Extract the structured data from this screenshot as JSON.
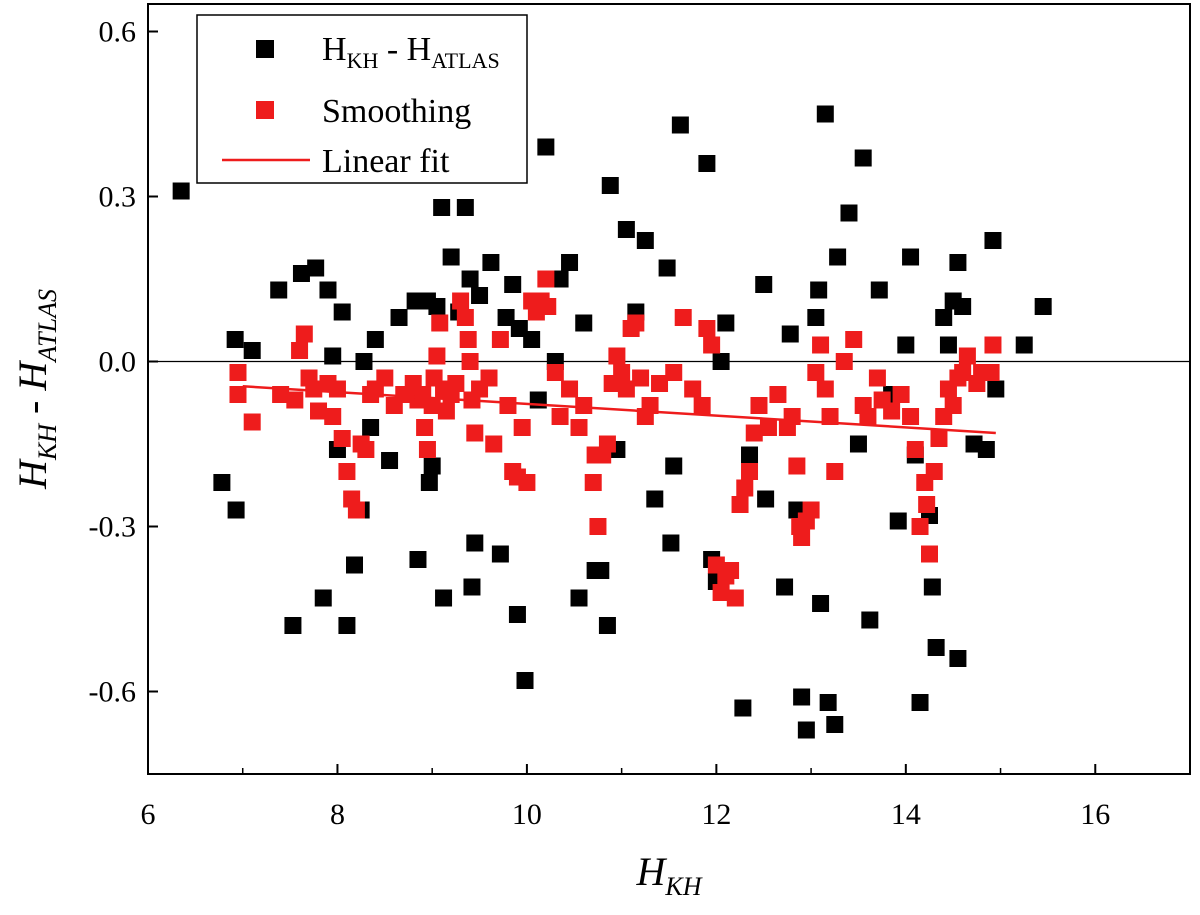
{
  "chart_data": {
    "type": "scatter",
    "title": "",
    "xlabel": {
      "main": "H",
      "sub": "KH"
    },
    "ylabel": {
      "main_a": "H",
      "sub_a": "KH",
      "sep": " - ",
      "main_b": "H",
      "sub_b": "ATLAS"
    },
    "xlim": [
      6,
      17
    ],
    "ylim": [
      -0.75,
      0.65
    ],
    "xticks": [
      6,
      8,
      10,
      12,
      14,
      16
    ],
    "xtick_labels": [
      "6",
      "8",
      "10",
      "12",
      "14",
      "16"
    ],
    "yticks": [
      -0.6,
      -0.3,
      0.0,
      0.3,
      0.6
    ],
    "ytick_labels": [
      "-0.6",
      "-0.3",
      "0.0",
      "0.3",
      "0.6"
    ],
    "reference_line_y": 0.0,
    "legend": {
      "position": "top-left",
      "entries": [
        {
          "key": "black",
          "main": "H",
          "sub": "KH",
          "sep": " - ",
          "main2": "H",
          "sub2": "ATLAS",
          "marker": "square",
          "color": "#000000"
        },
        {
          "key": "red",
          "label": "Smoothing",
          "marker": "square",
          "color": "#ee1c1c"
        },
        {
          "key": "fit",
          "label": "Linear fit",
          "marker": "line",
          "color": "#ee1c1c"
        }
      ]
    },
    "series": [
      {
        "name": "H_KH - H_ATLAS",
        "color": "#000000",
        "points": [
          [
            6.35,
            0.31
          ],
          [
            6.78,
            -0.22
          ],
          [
            6.92,
            0.04
          ],
          [
            6.93,
            -0.27
          ],
          [
            7.1,
            0.02
          ],
          [
            7.38,
            0.13
          ],
          [
            7.53,
            -0.48
          ],
          [
            7.62,
            0.16
          ],
          [
            7.77,
            0.17
          ],
          [
            7.85,
            -0.43
          ],
          [
            7.9,
            0.13
          ],
          [
            7.95,
            0.01
          ],
          [
            8.0,
            -0.16
          ],
          [
            8.05,
            0.09
          ],
          [
            8.1,
            -0.48
          ],
          [
            8.18,
            -0.37
          ],
          [
            8.25,
            -0.27
          ],
          [
            8.28,
            0.0
          ],
          [
            8.35,
            -0.12
          ],
          [
            8.4,
            0.04
          ],
          [
            8.55,
            -0.18
          ],
          [
            8.65,
            0.08
          ],
          [
            8.82,
            0.11
          ],
          [
            8.85,
            -0.36
          ],
          [
            8.95,
            0.11
          ],
          [
            8.97,
            -0.22
          ],
          [
            9.0,
            -0.19
          ],
          [
            9.05,
            0.1
          ],
          [
            9.1,
            0.28
          ],
          [
            9.12,
            -0.43
          ],
          [
            9.2,
            0.19
          ],
          [
            9.28,
            0.09
          ],
          [
            9.35,
            0.28
          ],
          [
            9.4,
            0.15
          ],
          [
            9.42,
            -0.41
          ],
          [
            9.45,
            -0.33
          ],
          [
            9.5,
            0.12
          ],
          [
            9.62,
            0.18
          ],
          [
            9.72,
            -0.35
          ],
          [
            9.78,
            0.08
          ],
          [
            9.85,
            0.14
          ],
          [
            9.9,
            -0.46
          ],
          [
            9.92,
            0.06
          ],
          [
            9.98,
            -0.58
          ],
          [
            10.05,
            0.04
          ],
          [
            10.12,
            -0.07
          ],
          [
            10.2,
            0.39
          ],
          [
            10.3,
            0.0
          ],
          [
            10.35,
            0.15
          ],
          [
            10.45,
            0.18
          ],
          [
            10.55,
            -0.43
          ],
          [
            10.6,
            0.07
          ],
          [
            10.72,
            -0.38
          ],
          [
            10.78,
            -0.38
          ],
          [
            10.85,
            -0.48
          ],
          [
            10.88,
            0.32
          ],
          [
            10.95,
            -0.16
          ],
          [
            11.05,
            0.24
          ],
          [
            11.15,
            0.09
          ],
          [
            11.25,
            0.22
          ],
          [
            11.35,
            -0.25
          ],
          [
            11.48,
            0.17
          ],
          [
            11.52,
            -0.33
          ],
          [
            11.55,
            -0.19
          ],
          [
            11.62,
            0.43
          ],
          [
            11.9,
            0.36
          ],
          [
            11.95,
            -0.36
          ],
          [
            12.0,
            -0.4
          ],
          [
            12.05,
            0.0
          ],
          [
            12.1,
            0.07
          ],
          [
            12.28,
            -0.63
          ],
          [
            12.35,
            -0.17
          ],
          [
            12.5,
            0.14
          ],
          [
            12.52,
            -0.25
          ],
          [
            12.72,
            -0.41
          ],
          [
            12.78,
            0.05
          ],
          [
            12.85,
            -0.27
          ],
          [
            12.9,
            -0.61
          ],
          [
            12.95,
            -0.67
          ],
          [
            13.05,
            0.08
          ],
          [
            13.08,
            0.13
          ],
          [
            13.1,
            -0.44
          ],
          [
            13.15,
            0.45
          ],
          [
            13.18,
            -0.62
          ],
          [
            13.25,
            -0.66
          ],
          [
            13.28,
            0.19
          ],
          [
            13.4,
            0.27
          ],
          [
            13.5,
            -0.15
          ],
          [
            13.55,
            0.37
          ],
          [
            13.62,
            -0.47
          ],
          [
            13.72,
            0.13
          ],
          [
            13.85,
            -0.06
          ],
          [
            13.92,
            -0.29
          ],
          [
            14.0,
            0.03
          ],
          [
            14.05,
            0.19
          ],
          [
            14.1,
            -0.17
          ],
          [
            14.15,
            -0.62
          ],
          [
            14.25,
            -0.28
          ],
          [
            14.28,
            -0.41
          ],
          [
            14.32,
            -0.52
          ],
          [
            14.4,
            0.08
          ],
          [
            14.45,
            0.03
          ],
          [
            14.5,
            0.11
          ],
          [
            14.55,
            0.18
          ],
          [
            14.55,
            -0.54
          ],
          [
            14.6,
            0.1
          ],
          [
            14.72,
            -0.15
          ],
          [
            14.85,
            -0.16
          ],
          [
            14.92,
            0.22
          ],
          [
            14.95,
            -0.05
          ],
          [
            15.25,
            0.03
          ],
          [
            15.45,
            0.1
          ]
        ]
      },
      {
        "name": "Smoothing",
        "color": "#ee1c1c",
        "points": [
          [
            6.95,
            -0.02
          ],
          [
            6.95,
            -0.06
          ],
          [
            7.1,
            -0.11
          ],
          [
            7.4,
            -0.06
          ],
          [
            7.55,
            -0.07
          ],
          [
            7.6,
            0.02
          ],
          [
            7.65,
            0.05
          ],
          [
            7.7,
            -0.03
          ],
          [
            7.75,
            -0.05
          ],
          [
            7.8,
            -0.09
          ],
          [
            7.9,
            -0.04
          ],
          [
            7.95,
            -0.1
          ],
          [
            8.0,
            -0.05
          ],
          [
            8.05,
            -0.14
          ],
          [
            8.1,
            -0.2
          ],
          [
            8.15,
            -0.25
          ],
          [
            8.2,
            -0.27
          ],
          [
            8.25,
            -0.15
          ],
          [
            8.3,
            -0.16
          ],
          [
            8.35,
            -0.06
          ],
          [
            8.4,
            -0.05
          ],
          [
            8.5,
            -0.03
          ],
          [
            8.6,
            -0.08
          ],
          [
            8.7,
            -0.06
          ],
          [
            8.8,
            -0.04
          ],
          [
            8.85,
            -0.07
          ],
          [
            8.9,
            -0.06
          ],
          [
            8.92,
            -0.12
          ],
          [
            8.95,
            -0.16
          ],
          [
            9.0,
            -0.08
          ],
          [
            9.02,
            -0.03
          ],
          [
            9.05,
            0.01
          ],
          [
            9.08,
            0.07
          ],
          [
            9.12,
            -0.05
          ],
          [
            9.15,
            -0.09
          ],
          [
            9.2,
            -0.06
          ],
          [
            9.25,
            -0.04
          ],
          [
            9.3,
            0.11
          ],
          [
            9.35,
            0.08
          ],
          [
            9.38,
            0.04
          ],
          [
            9.4,
            0.0
          ],
          [
            9.42,
            -0.07
          ],
          [
            9.45,
            -0.13
          ],
          [
            9.5,
            -0.05
          ],
          [
            9.6,
            -0.03
          ],
          [
            9.65,
            -0.15
          ],
          [
            9.72,
            0.04
          ],
          [
            9.8,
            -0.08
          ],
          [
            9.85,
            -0.2
          ],
          [
            9.9,
            -0.21
          ],
          [
            9.95,
            -0.12
          ],
          [
            10.0,
            -0.22
          ],
          [
            10.05,
            0.11
          ],
          [
            10.1,
            0.09
          ],
          [
            10.15,
            0.11
          ],
          [
            10.2,
            0.15
          ],
          [
            10.22,
            0.1
          ],
          [
            10.3,
            -0.02
          ],
          [
            10.35,
            -0.1
          ],
          [
            10.45,
            -0.05
          ],
          [
            10.55,
            -0.12
          ],
          [
            10.6,
            -0.08
          ],
          [
            10.7,
            -0.22
          ],
          [
            10.72,
            -0.17
          ],
          [
            10.75,
            -0.3
          ],
          [
            10.8,
            -0.17
          ],
          [
            10.85,
            -0.15
          ],
          [
            10.9,
            -0.04
          ],
          [
            10.95,
            0.01
          ],
          [
            11.0,
            -0.02
          ],
          [
            11.05,
            -0.05
          ],
          [
            11.1,
            0.06
          ],
          [
            11.15,
            0.07
          ],
          [
            11.2,
            -0.03
          ],
          [
            11.25,
            -0.1
          ],
          [
            11.3,
            -0.08
          ],
          [
            11.4,
            -0.04
          ],
          [
            11.55,
            -0.02
          ],
          [
            11.65,
            0.08
          ],
          [
            11.75,
            -0.05
          ],
          [
            11.85,
            -0.08
          ],
          [
            11.9,
            0.06
          ],
          [
            11.95,
            0.03
          ],
          [
            12.0,
            -0.37
          ],
          [
            12.05,
            -0.42
          ],
          [
            12.1,
            -0.39
          ],
          [
            12.15,
            -0.38
          ],
          [
            12.2,
            -0.43
          ],
          [
            12.25,
            -0.26
          ],
          [
            12.3,
            -0.23
          ],
          [
            12.35,
            -0.2
          ],
          [
            12.4,
            -0.13
          ],
          [
            12.45,
            -0.08
          ],
          [
            12.55,
            -0.12
          ],
          [
            12.65,
            -0.06
          ],
          [
            12.75,
            -0.12
          ],
          [
            12.8,
            -0.1
          ],
          [
            12.85,
            -0.19
          ],
          [
            12.88,
            -0.3
          ],
          [
            12.9,
            -0.32
          ],
          [
            12.95,
            -0.29
          ],
          [
            13.0,
            -0.27
          ],
          [
            13.05,
            -0.02
          ],
          [
            13.1,
            0.03
          ],
          [
            13.15,
            -0.05
          ],
          [
            13.2,
            -0.1
          ],
          [
            13.25,
            -0.2
          ],
          [
            13.35,
            0.0
          ],
          [
            13.45,
            0.04
          ],
          [
            13.55,
            -0.08
          ],
          [
            13.6,
            -0.1
          ],
          [
            13.7,
            -0.03
          ],
          [
            13.75,
            -0.07
          ],
          [
            13.85,
            -0.09
          ],
          [
            13.95,
            -0.06
          ],
          [
            14.05,
            -0.1
          ],
          [
            14.1,
            -0.16
          ],
          [
            14.15,
            -0.3
          ],
          [
            14.2,
            -0.22
          ],
          [
            14.22,
            -0.26
          ],
          [
            14.25,
            -0.35
          ],
          [
            14.3,
            -0.2
          ],
          [
            14.35,
            -0.14
          ],
          [
            14.4,
            -0.1
          ],
          [
            14.45,
            -0.05
          ],
          [
            14.5,
            -0.08
          ],
          [
            14.55,
            -0.03
          ],
          [
            14.6,
            -0.02
          ],
          [
            14.65,
            0.01
          ],
          [
            14.75,
            -0.04
          ],
          [
            14.8,
            -0.02
          ],
          [
            14.9,
            -0.02
          ],
          [
            14.92,
            0.03
          ]
        ]
      },
      {
        "name": "Linear fit",
        "color": "#ee1c1c",
        "kind": "line",
        "x": [
          7.0,
          14.95
        ],
        "y": [
          -0.045,
          -0.13
        ]
      }
    ]
  }
}
